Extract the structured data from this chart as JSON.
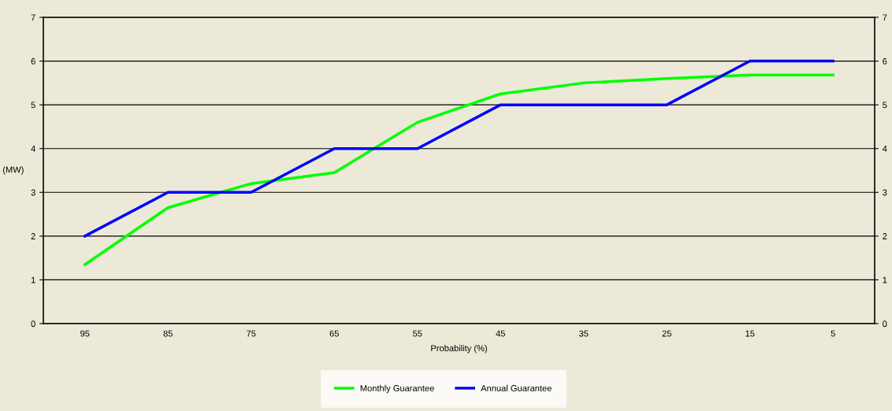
{
  "chart_data": {
    "type": "line",
    "xlabel": "Probability (%)",
    "ylabel": "(MW)",
    "categories": [
      "95",
      "85",
      "75",
      "65",
      "55",
      "45",
      "35",
      "25",
      "15",
      "5"
    ],
    "series": [
      {
        "name": "Monthly Guarantee",
        "color": "#00ff00",
        "values": [
          1.35,
          2.65,
          3.2,
          3.45,
          4.6,
          5.25,
          5.5,
          5.6,
          5.68,
          5.68
        ]
      },
      {
        "name": "Annual Guarantee",
        "color": "#0000ff",
        "values": [
          2,
          3,
          3,
          4,
          4,
          5,
          5,
          5,
          6,
          6
        ]
      }
    ],
    "ylim": [
      0,
      7
    ],
    "yticks": [
      0,
      1,
      2,
      3,
      4,
      5,
      6,
      7
    ],
    "y2lim": [
      0,
      7
    ],
    "y2ticks": [
      0,
      1,
      2,
      3,
      4,
      5,
      6,
      7
    ],
    "grid": true,
    "legend": "bottom",
    "marker": "none",
    "line_style": "solid"
  }
}
